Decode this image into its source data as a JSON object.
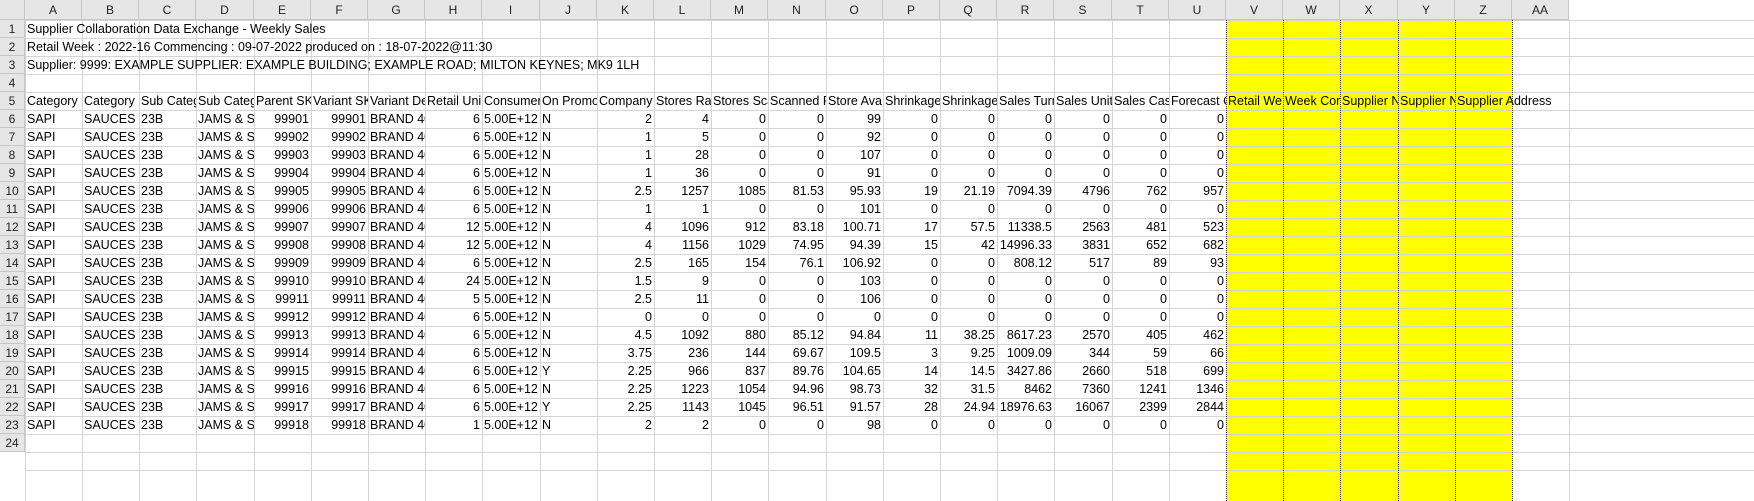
{
  "sheet": {
    "column_letters": [
      "A",
      "B",
      "C",
      "D",
      "E",
      "F",
      "G",
      "H",
      "I",
      "J",
      "K",
      "L",
      "M",
      "N",
      "O",
      "P",
      "Q",
      "R",
      "S",
      "T",
      "U",
      "V",
      "W",
      "X",
      "Y",
      "Z",
      "AA"
    ],
    "row_numbers": [
      "1",
      "2",
      "3",
      "4",
      "5",
      "6",
      "7",
      "8",
      "9",
      "10",
      "11",
      "12",
      "13",
      "14",
      "15",
      "16",
      "17",
      "18",
      "19",
      "20",
      "21",
      "22",
      "23",
      "24"
    ],
    "title_rows": [
      "Supplier Collaboration Data Exchange - Weekly Sales",
      "Retail Week : 2022-16   Commencing : 09-07-2022   produced on : 18-07-2022@11:30",
      "Supplier: 9999: EXAMPLE SUPPLIER: EXAMPLE BUILDING; EXAMPLE ROAD; MILTON KEYNES; MK9 1LH"
    ],
    "headers": [
      "Category",
      "Category I",
      "Sub Categ",
      "Sub Categ",
      "Parent SKU",
      "Variant SK",
      "Variant De",
      "Retail Uni",
      "Consumer",
      "On Promo",
      "Company",
      "Stores Rar",
      "Stores Sca",
      "Scanned R",
      "Store Ava",
      "Shrinkage",
      "Shrinkage",
      "Sales Turn",
      "Sales Unit",
      "Sales Case",
      "Forecast C",
      "Retail We",
      "Week Cor",
      "Supplier N",
      "Supplier N",
      "Supplier Address"
    ],
    "rows": [
      [
        "SAPI",
        "SAUCES &",
        "23B",
        "JAMS & SF",
        "99901",
        "99901",
        "BRAND 40",
        "6",
        "5.00E+12",
        "N",
        "2",
        "4",
        "0",
        "0",
        "99",
        "0",
        "0",
        "0",
        "0",
        "0",
        "0"
      ],
      [
        "SAPI",
        "SAUCES &",
        "23B",
        "JAMS & SF",
        "99902",
        "99902",
        "BRAND 40",
        "6",
        "5.00E+12",
        "N",
        "1",
        "5",
        "0",
        "0",
        "92",
        "0",
        "0",
        "0",
        "0",
        "0",
        "0"
      ],
      [
        "SAPI",
        "SAUCES &",
        "23B",
        "JAMS & SF",
        "99903",
        "99903",
        "BRAND 40",
        "6",
        "5.00E+12",
        "N",
        "1",
        "28",
        "0",
        "0",
        "107",
        "0",
        "0",
        "0",
        "0",
        "0",
        "0"
      ],
      [
        "SAPI",
        "SAUCES &",
        "23B",
        "JAMS & SF",
        "99904",
        "99904",
        "BRAND 40",
        "6",
        "5.00E+12",
        "N",
        "1",
        "36",
        "0",
        "0",
        "91",
        "0",
        "0",
        "0",
        "0",
        "0",
        "0"
      ],
      [
        "SAPI",
        "SAUCES &",
        "23B",
        "JAMS & SF",
        "99905",
        "99905",
        "BRAND 40",
        "6",
        "5.00E+12",
        "N",
        "2.5",
        "1257",
        "1085",
        "81.53",
        "95.93",
        "19",
        "21.19",
        "7094.39",
        "4796",
        "762",
        "957"
      ],
      [
        "SAPI",
        "SAUCES &",
        "23B",
        "JAMS & SF",
        "99906",
        "99906",
        "BRAND 40",
        "6",
        "5.00E+12",
        "N",
        "1",
        "1",
        "0",
        "0",
        "101",
        "0",
        "0",
        "0",
        "0",
        "0",
        "0"
      ],
      [
        "SAPI",
        "SAUCES &",
        "23B",
        "JAMS & SF",
        "99907",
        "99907",
        "BRAND 40",
        "12",
        "5.00E+12",
        "N",
        "4",
        "1096",
        "912",
        "83.18",
        "100.71",
        "17",
        "57.5",
        "11338.5",
        "2563",
        "481",
        "523"
      ],
      [
        "SAPI",
        "SAUCES &",
        "23B",
        "JAMS & SF",
        "99908",
        "99908",
        "BRAND 40",
        "12",
        "5.00E+12",
        "N",
        "4",
        "1156",
        "1029",
        "74.95",
        "94.39",
        "15",
        "42",
        "14996.33",
        "3831",
        "652",
        "682"
      ],
      [
        "SAPI",
        "SAUCES &",
        "23B",
        "JAMS & SF",
        "99909",
        "99909",
        "BRAND 40",
        "6",
        "5.00E+12",
        "N",
        "2.5",
        "165",
        "154",
        "76.1",
        "106.92",
        "0",
        "0",
        "808.12",
        "517",
        "89",
        "93"
      ],
      [
        "SAPI",
        "SAUCES &",
        "23B",
        "JAMS & SF",
        "99910",
        "99910",
        "BRAND 40",
        "24",
        "5.00E+12",
        "N",
        "1.5",
        "9",
        "0",
        "0",
        "103",
        "0",
        "0",
        "0",
        "0",
        "0",
        "0"
      ],
      [
        "SAPI",
        "SAUCES &",
        "23B",
        "JAMS & SF",
        "99911",
        "99911",
        "BRAND 40",
        "5",
        "5.00E+12",
        "N",
        "2.5",
        "11",
        "0",
        "0",
        "106",
        "0",
        "0",
        "0",
        "0",
        "0",
        "0"
      ],
      [
        "SAPI",
        "SAUCES &",
        "23B",
        "JAMS & SF",
        "99912",
        "99912",
        "BRAND 40",
        "6",
        "5.00E+12",
        "N",
        "0",
        "0",
        "0",
        "0",
        "0",
        "0",
        "0",
        "0",
        "0",
        "0",
        "0"
      ],
      [
        "SAPI",
        "SAUCES &",
        "23B",
        "JAMS & SF",
        "99913",
        "99913",
        "BRAND 40",
        "6",
        "5.00E+12",
        "N",
        "4.5",
        "1092",
        "880",
        "85.12",
        "94.84",
        "11",
        "38.25",
        "8617.23",
        "2570",
        "405",
        "462"
      ],
      [
        "SAPI",
        "SAUCES &",
        "23B",
        "JAMS & SF",
        "99914",
        "99914",
        "BRAND 40",
        "6",
        "5.00E+12",
        "N",
        "3.75",
        "236",
        "144",
        "69.67",
        "109.5",
        "3",
        "9.25",
        "1009.09",
        "344",
        "59",
        "66"
      ],
      [
        "SAPI",
        "SAUCES &",
        "23B",
        "JAMS & SF",
        "99915",
        "99915",
        "BRAND 40",
        "6",
        "5.00E+12",
        "Y",
        "2.25",
        "966",
        "837",
        "89.76",
        "104.65",
        "14",
        "14.5",
        "3427.86",
        "2660",
        "518",
        "699"
      ],
      [
        "SAPI",
        "SAUCES &",
        "23B",
        "JAMS & SF",
        "99916",
        "99916",
        "BRAND 40",
        "6",
        "5.00E+12",
        "N",
        "2.25",
        "1223",
        "1054",
        "94.96",
        "98.73",
        "32",
        "31.5",
        "8462",
        "7360",
        "1241",
        "1346"
      ],
      [
        "SAPI",
        "SAUCES &",
        "23B",
        "JAMS & SF",
        "99917",
        "99917",
        "BRAND 40",
        "6",
        "5.00E+12",
        "Y",
        "2.25",
        "1143",
        "1045",
        "96.51",
        "91.57",
        "28",
        "24.94",
        "18976.63",
        "16067",
        "2399",
        "2844"
      ],
      [
        "SAPI",
        "SAUCES &",
        "23B",
        "JAMS & SF",
        "99918",
        "99918",
        "BRAND 40",
        "1",
        "5.00E+12",
        "N",
        "2",
        "2",
        "0",
        "0",
        "98",
        "0",
        "0",
        "0",
        "0",
        "0",
        "0"
      ]
    ],
    "colors": {
      "highlight": "#ffff00",
      "header_bg": "#e6e6e6",
      "gridline": "#d4d4d4"
    }
  }
}
